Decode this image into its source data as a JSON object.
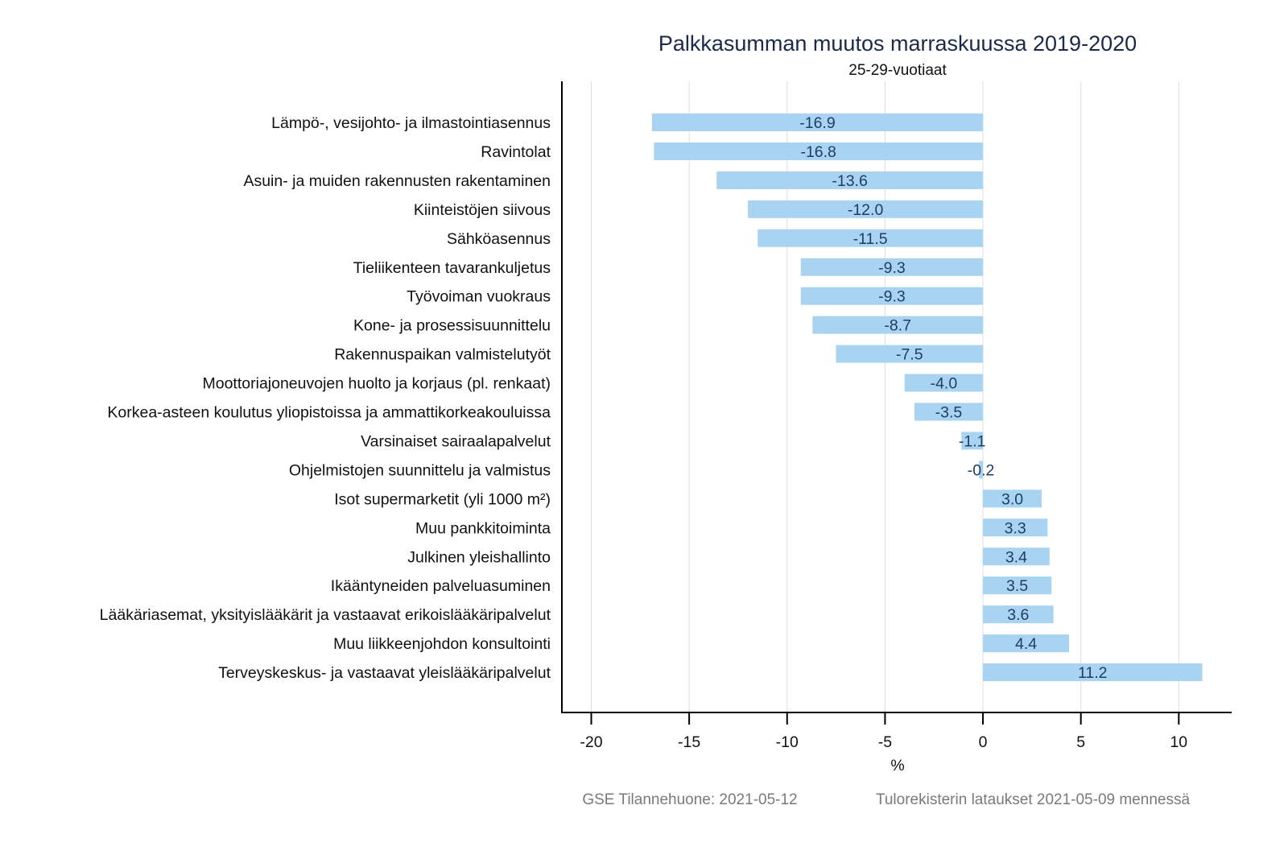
{
  "chart_data": {
    "type": "bar",
    "orientation": "horizontal",
    "title": "Palkkasumman muutos marraskuussa 2019-2020",
    "subtitle": "25-29-vuotiaat",
    "xlabel": "%",
    "ylabel": "",
    "xlim": [
      -21.5,
      12.7
    ],
    "xticks": [
      -20,
      -15,
      -10,
      -5,
      0,
      5,
      10
    ],
    "xtick_labels": [
      "-20",
      "-15",
      "-10",
      "-5",
      "0",
      "5",
      "10"
    ],
    "grid": "vertical",
    "categories": [
      "Lämpö-, vesijohto- ja ilmastointiasennus",
      "Ravintolat",
      "Asuin- ja muiden rakennusten rakentaminen",
      "Kiinteistöjen siivous",
      "Sähköasennus",
      "Tieliikenteen tavarankuljetus",
      "Työvoiman vuokraus",
      "Kone- ja prosessisuunnittelu",
      "Rakennuspaikan valmistelutyöt",
      "Moottoriajoneuvojen huolto ja korjaus (pl. renkaat)",
      "Korkea-asteen koulutus yliopistoissa ja ammattikorkeakouluissa",
      "Varsinaiset sairaalapalvelut",
      "Ohjelmistojen suunnittelu ja valmistus",
      "Isot supermarketit (yli 1000 m²)",
      "Muu pankkitoiminta",
      "Julkinen yleishallinto",
      "Ikääntyneiden palveluasuminen",
      "Lääkäriasemat, yksityislääkärit ja vastaavat erikoislääkäripalvelut",
      "Muu liikkeenjohdon konsultointi",
      "Terveyskeskus- ja vastaavat yleislääkäripalvelut"
    ],
    "values": [
      -16.9,
      -16.8,
      -13.6,
      -12.0,
      -11.5,
      -9.3,
      -9.3,
      -8.7,
      -7.5,
      -4.0,
      -3.5,
      -1.1,
      -0.2,
      3.0,
      3.3,
      3.4,
      3.5,
      3.6,
      4.4,
      11.2
    ],
    "value_labels": [
      "-16.9",
      "-16.8",
      "-13.6",
      "-12.0",
      "-11.5",
      "-9.3",
      "-9.3",
      "-8.7",
      "-7.5",
      "-4.0",
      "-3.5",
      "-1.1",
      "-0.2",
      "3.0",
      "3.3",
      "3.4",
      "3.5",
      "3.6",
      "4.4",
      "11.2"
    ],
    "colors": {
      "bar": "#a8d3f1",
      "bar_label": "#1f3d66",
      "title": "#1a2a4a",
      "grid": "#dedede",
      "axis": "#000000",
      "footer": "#7a7a7a"
    },
    "footer": {
      "left": "GSE Tilannehuone: 2021-05-12",
      "right": "Tulorekisterin lataukset 2021-05-09 mennessä"
    }
  }
}
